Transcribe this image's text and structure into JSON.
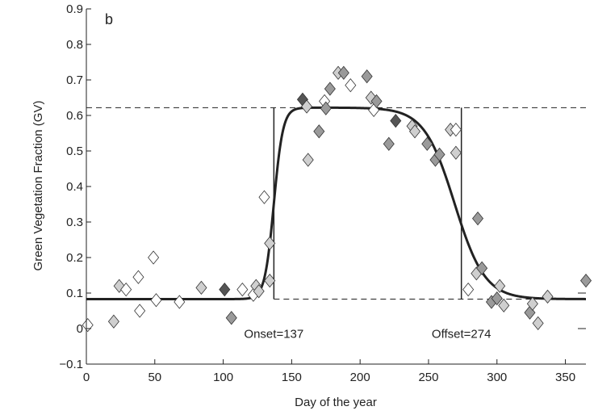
{
  "chart_data": {
    "type": "scatter",
    "panel_label": "b",
    "xlabel": "Day of the year",
    "ylabel": "Green Vegetation Fraction (GV)",
    "xlim": [
      0,
      365
    ],
    "ylim": [
      -0.1,
      0.9
    ],
    "xticks": [
      0,
      50,
      100,
      150,
      200,
      250,
      300,
      350
    ],
    "yticks": [
      -0.1,
      0,
      0.1,
      0.2,
      0.3,
      0.4,
      0.5,
      0.6,
      0.7,
      0.8,
      0.9
    ],
    "ytick_labels": [
      "−0.1",
      "0",
      "0.1",
      "0.2",
      "0.3",
      "0.4",
      "0.5",
      "0.6",
      "0.7",
      "0.8",
      "0.9"
    ],
    "grid": false,
    "fitted_curve": {
      "form": "double-logistic",
      "base": 0.083,
      "max": 0.622,
      "rise_midpoint": 137,
      "rise_rate": 0.3,
      "fall_midpoint": 269,
      "fall_rate": 0.09,
      "color": "#222222"
    },
    "reference_lines": {
      "upper_gv": 0.622,
      "lower_gv": 0.083,
      "onset_day": 137,
      "offset_day": 274
    },
    "annotations": [
      {
        "text": "Onset=137",
        "x": 137,
        "y": -0.015
      },
      {
        "text": "Offset=274",
        "x": 274,
        "y": -0.015
      }
    ],
    "marker_colors": {
      "white": "#ffffff",
      "light": "#cfcfcf",
      "medium": "#9a9a9a",
      "dark": "#555555"
    },
    "points": [
      {
        "x": 1,
        "y": 0.01,
        "shade": "white"
      },
      {
        "x": 20,
        "y": 0.02,
        "shade": "light"
      },
      {
        "x": 24,
        "y": 0.12,
        "shade": "light"
      },
      {
        "x": 29,
        "y": 0.11,
        "shade": "white"
      },
      {
        "x": 38,
        "y": 0.145,
        "shade": "white"
      },
      {
        "x": 39,
        "y": 0.05,
        "shade": "white"
      },
      {
        "x": 49,
        "y": 0.2,
        "shade": "white"
      },
      {
        "x": 51,
        "y": 0.08,
        "shade": "white"
      },
      {
        "x": 68,
        "y": 0.075,
        "shade": "white"
      },
      {
        "x": 84,
        "y": 0.115,
        "shade": "light"
      },
      {
        "x": 101,
        "y": 0.11,
        "shade": "dark"
      },
      {
        "x": 106,
        "y": 0.03,
        "shade": "medium"
      },
      {
        "x": 114,
        "y": 0.11,
        "shade": "white"
      },
      {
        "x": 122,
        "y": 0.095,
        "shade": "white"
      },
      {
        "x": 124,
        "y": 0.12,
        "shade": "light"
      },
      {
        "x": 126,
        "y": 0.105,
        "shade": "light"
      },
      {
        "x": 130,
        "y": 0.37,
        "shade": "white"
      },
      {
        "x": 134,
        "y": 0.24,
        "shade": "light"
      },
      {
        "x": 134,
        "y": 0.135,
        "shade": "light"
      },
      {
        "x": 158,
        "y": 0.645,
        "shade": "dark"
      },
      {
        "x": 161,
        "y": 0.625,
        "shade": "light"
      },
      {
        "x": 162,
        "y": 0.475,
        "shade": "light"
      },
      {
        "x": 170,
        "y": 0.555,
        "shade": "medium"
      },
      {
        "x": 174,
        "y": 0.64,
        "shade": "white"
      },
      {
        "x": 175,
        "y": 0.62,
        "shade": "medium"
      },
      {
        "x": 178,
        "y": 0.675,
        "shade": "medium"
      },
      {
        "x": 184,
        "y": 0.72,
        "shade": "light"
      },
      {
        "x": 188,
        "y": 0.72,
        "shade": "medium"
      },
      {
        "x": 193,
        "y": 0.685,
        "shade": "white"
      },
      {
        "x": 205,
        "y": 0.71,
        "shade": "medium"
      },
      {
        "x": 208,
        "y": 0.65,
        "shade": "light"
      },
      {
        "x": 210,
        "y": 0.615,
        "shade": "white"
      },
      {
        "x": 212,
        "y": 0.64,
        "shade": "medium"
      },
      {
        "x": 221,
        "y": 0.52,
        "shade": "medium"
      },
      {
        "x": 226,
        "y": 0.585,
        "shade": "dark"
      },
      {
        "x": 238,
        "y": 0.57,
        "shade": "light"
      },
      {
        "x": 240,
        "y": 0.555,
        "shade": "light"
      },
      {
        "x": 249,
        "y": 0.52,
        "shade": "medium"
      },
      {
        "x": 255,
        "y": 0.475,
        "shade": "medium"
      },
      {
        "x": 258,
        "y": 0.49,
        "shade": "medium"
      },
      {
        "x": 266,
        "y": 0.56,
        "shade": "light"
      },
      {
        "x": 270,
        "y": 0.56,
        "shade": "white"
      },
      {
        "x": 270,
        "y": 0.495,
        "shade": "light"
      },
      {
        "x": 279,
        "y": 0.11,
        "shade": "white"
      },
      {
        "x": 285,
        "y": 0.155,
        "shade": "light"
      },
      {
        "x": 286,
        "y": 0.31,
        "shade": "medium"
      },
      {
        "x": 289,
        "y": 0.17,
        "shade": "medium"
      },
      {
        "x": 296,
        "y": 0.075,
        "shade": "medium"
      },
      {
        "x": 300,
        "y": 0.085,
        "shade": "medium"
      },
      {
        "x": 302,
        "y": 0.12,
        "shade": "light"
      },
      {
        "x": 305,
        "y": 0.065,
        "shade": "light"
      },
      {
        "x": 324,
        "y": 0.045,
        "shade": "medium"
      },
      {
        "x": 326,
        "y": 0.07,
        "shade": "light"
      },
      {
        "x": 330,
        "y": 0.015,
        "shade": "light"
      },
      {
        "x": 337,
        "y": 0.09,
        "shade": "light"
      },
      {
        "x": 365,
        "y": 0.135,
        "shade": "medium"
      }
    ]
  }
}
